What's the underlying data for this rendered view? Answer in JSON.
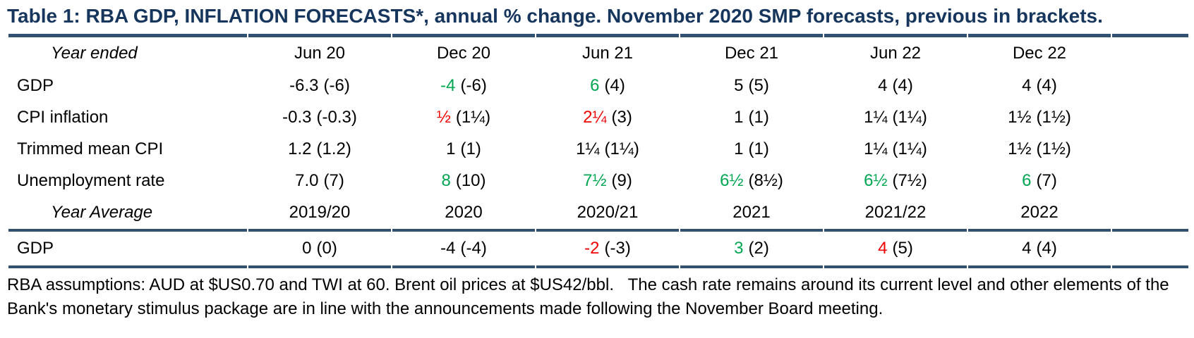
{
  "colors": {
    "title_navy": "#17365D",
    "rule_navy": "#32506F",
    "green": "#00A651",
    "red": "#F00000"
  },
  "chart_data": {
    "type": "table",
    "title": "Table 1: RBA GDP, INFLATION FORECASTS*, annual % change. November 2020 SMP forecasts, previous in brackets.",
    "period_header": {
      "label": "Year ended",
      "columns": [
        "Jun 20",
        "Dec 20",
        "Jun 21",
        "Dec 21",
        "Jun 22",
        "Dec 22"
      ]
    },
    "rows": [
      {
        "label": "GDP",
        "cells": [
          {
            "v": "-6.3",
            "b": "(-6)",
            "c": "black"
          },
          {
            "v": "-4",
            "b": "(-6)",
            "c": "green"
          },
          {
            "v": "6",
            "b": "(4)",
            "c": "green"
          },
          {
            "v": "5",
            "b": "(5)",
            "c": "black"
          },
          {
            "v": "4",
            "b": "(4)",
            "c": "black"
          },
          {
            "v": "4",
            "b": "(4)",
            "c": "black"
          }
        ]
      },
      {
        "label": "CPI inflation",
        "cells": [
          {
            "v": "-0.3",
            "b": "(-0.3)",
            "c": "black"
          },
          {
            "v": "½",
            "b": "(1¼)",
            "c": "red"
          },
          {
            "v": "2¼",
            "b": "(3)",
            "c": "red"
          },
          {
            "v": "1",
            "b": "(1)",
            "c": "black"
          },
          {
            "v": "1¼",
            "b": "(1¼)",
            "c": "black"
          },
          {
            "v": "1½",
            "b": "(1½)",
            "c": "black"
          }
        ]
      },
      {
        "label": "Trimmed mean CPI",
        "cells": [
          {
            "v": "1.2",
            "b": "(1.2)",
            "c": "black"
          },
          {
            "v": "1",
            "b": "(1)",
            "c": "black"
          },
          {
            "v": "1¼",
            "b": "(1¼)",
            "c": "black"
          },
          {
            "v": "1",
            "b": "(1)",
            "c": "black"
          },
          {
            "v": "1¼",
            "b": "(1¼)",
            "c": "black"
          },
          {
            "v": "1½",
            "b": "(1½)",
            "c": "black"
          }
        ]
      },
      {
        "label": "Unemployment rate",
        "cells": [
          {
            "v": "7.0",
            "b": "(7)",
            "c": "black"
          },
          {
            "v": "8",
            "b": "(10)",
            "c": "green"
          },
          {
            "v": "7½",
            "b": "(9)",
            "c": "green"
          },
          {
            "v": "6½",
            "b": "(8½)",
            "c": "green"
          },
          {
            "v": "6½",
            "b": "(7½)",
            "c": "green"
          },
          {
            "v": "6",
            "b": "(7)",
            "c": "green"
          }
        ]
      }
    ],
    "avg_header": {
      "label": "Year Average",
      "columns": [
        "2019/20",
        "2020",
        "2020/21",
        "2021",
        "2021/22",
        "2022"
      ]
    },
    "avg_rows": [
      {
        "label": "GDP",
        "cells": [
          {
            "v": "0",
            "b": "(0)",
            "c": "black"
          },
          {
            "v": "-4",
            "b": "(-4)",
            "c": "black"
          },
          {
            "v": "-2",
            "b": "(-3)",
            "c": "red"
          },
          {
            "v": "3",
            "b": "(2)",
            "c": "green"
          },
          {
            "v": "4",
            "b": "(5)",
            "c": "red"
          },
          {
            "v": "4",
            "b": "(4)",
            "c": "black"
          }
        ]
      }
    ],
    "footnote": "RBA assumptions: AUD at $US0.70 and TWI at 60. Brent oil prices at $US42/bbl.   The cash rate remains around its current level and other elements of the Bank's monetary stimulus package are in line with the announcements made following the November Board meeting."
  }
}
